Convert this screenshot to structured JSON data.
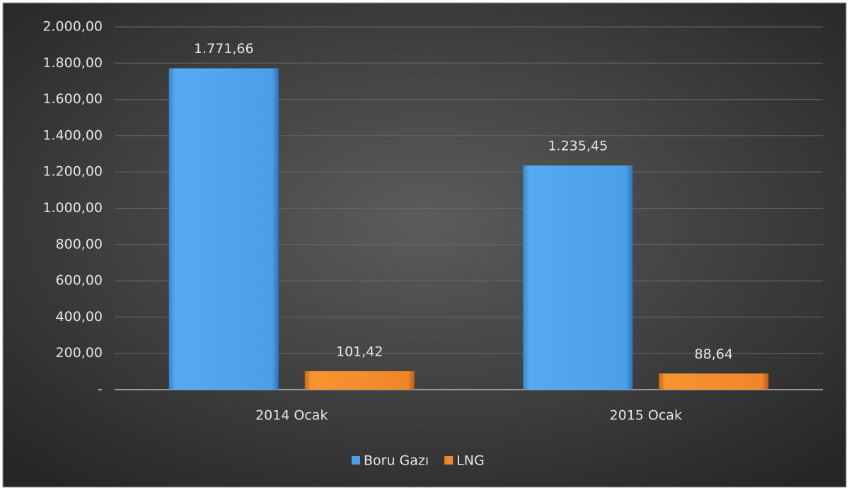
{
  "chart_data": {
    "type": "bar",
    "categories": [
      "2014 Ocak",
      "2015 Ocak"
    ],
    "series": [
      {
        "name": "Boru Gazı",
        "color": "#4a9fe8",
        "values": [
          1771.66,
          1235.45
        ],
        "value_labels": [
          "1.771,66",
          "1.235,45"
        ]
      },
      {
        "name": "LNG",
        "color": "#f0852a",
        "values": [
          101.42,
          88.64
        ],
        "value_labels": [
          "101,42",
          "88,64"
        ]
      }
    ],
    "ylim": [
      0,
      2000
    ],
    "yticks": [
      {
        "value": 0,
        "label": "-"
      },
      {
        "value": 200,
        "label": "200,00"
      },
      {
        "value": 400,
        "label": "400,00"
      },
      {
        "value": 600,
        "label": "600,00"
      },
      {
        "value": 800,
        "label": "800,00"
      },
      {
        "value": 1000,
        "label": "1.000,00"
      },
      {
        "value": 1200,
        "label": "1.200,00"
      },
      {
        "value": 1400,
        "label": "1.400,00"
      },
      {
        "value": 1600,
        "label": "1.600,00"
      },
      {
        "value": 1800,
        "label": "1.800,00"
      },
      {
        "value": 2000,
        "label": "2.000,00"
      }
    ],
    "grid": true,
    "legend": "bottom"
  }
}
